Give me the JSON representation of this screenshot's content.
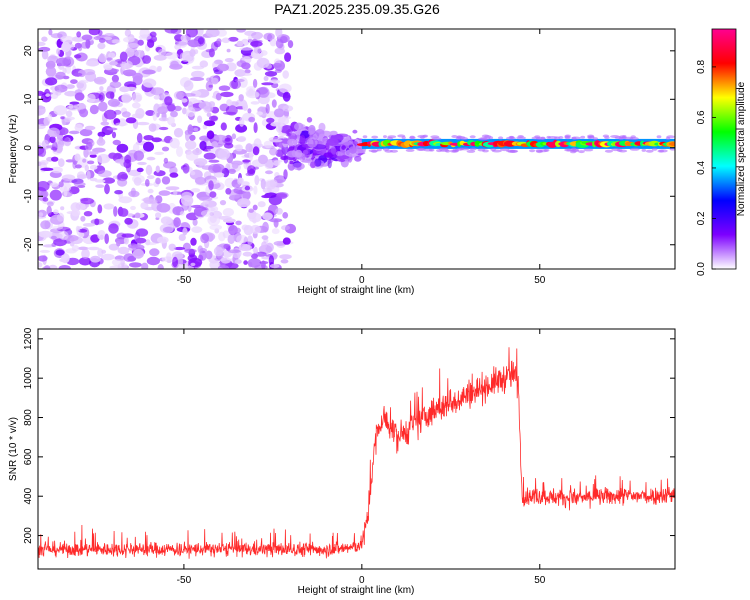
{
  "title": "PAZ1.2025.235.09.35.G26",
  "chart_data": [
    {
      "type": "heatmap",
      "xlabel": "Height of straight line (km)",
      "ylabel": "Frequency (Hz)",
      "xlim": [
        -91,
        88
      ],
      "ylim": [
        -25,
        24.5
      ],
      "xticks": [
        -50,
        0,
        50
      ],
      "yticks": [
        -20,
        -10,
        0,
        10,
        20
      ],
      "grid": false,
      "colorbar": {
        "label": "Normalized spectral amplitude",
        "range": [
          0,
          0.95
        ],
        "ticks": [
          0.0,
          0.2,
          0.4,
          0.6,
          0.8
        ],
        "tick_labels": [
          "0.0",
          "0.2",
          "0.4",
          "0.6",
          "0.8"
        ],
        "colormap": [
          "#ffffff",
          "#7d00ff",
          "#0000ff",
          "#00ffff",
          "#00ff00",
          "#ffff00",
          "#ff0000",
          "#ff0090"
        ]
      },
      "regions": [
        {
          "x": [
            -91,
            -20
          ],
          "freq": [
            -25,
            24.5
          ],
          "character": "scattered noise",
          "amplitude": [
            0.02,
            0.15
          ]
        },
        {
          "x": [
            -20,
            0
          ],
          "freq": [
            -8,
            8
          ],
          "character": "converging noise",
          "amplitude": [
            0.05,
            0.18
          ]
        },
        {
          "x": [
            0,
            88
          ],
          "freq": [
            0,
            1.6
          ],
          "character": "narrow signal band near 0.8 Hz",
          "amplitude": [
            0.3,
            0.95
          ]
        }
      ]
    },
    {
      "type": "line",
      "xlabel": "Height of straight line (km)",
      "ylabel": "SNR (10 * v/v)",
      "xlim": [
        -91,
        88
      ],
      "ylim": [
        30,
        1250
      ],
      "xticks": [
        -50,
        0,
        50
      ],
      "yticks": [
        200,
        400,
        600,
        800,
        1000,
        1200
      ],
      "grid": false,
      "series": [
        {
          "color": "#ff2a2a",
          "x": [
            -91,
            -70,
            -50,
            -30,
            -10,
            -2,
            0,
            1,
            2,
            3,
            4,
            6,
            10,
            20,
            30,
            40,
            43,
            44,
            45,
            50,
            60,
            70,
            80,
            88
          ],
          "y": [
            130,
            130,
            130,
            130,
            130,
            140,
            160,
            220,
            350,
            550,
            700,
            800,
            700,
            830,
            920,
            1000,
            1020,
            950,
            400,
            400,
            390,
            400,
            400,
            410
          ]
        }
      ]
    }
  ]
}
